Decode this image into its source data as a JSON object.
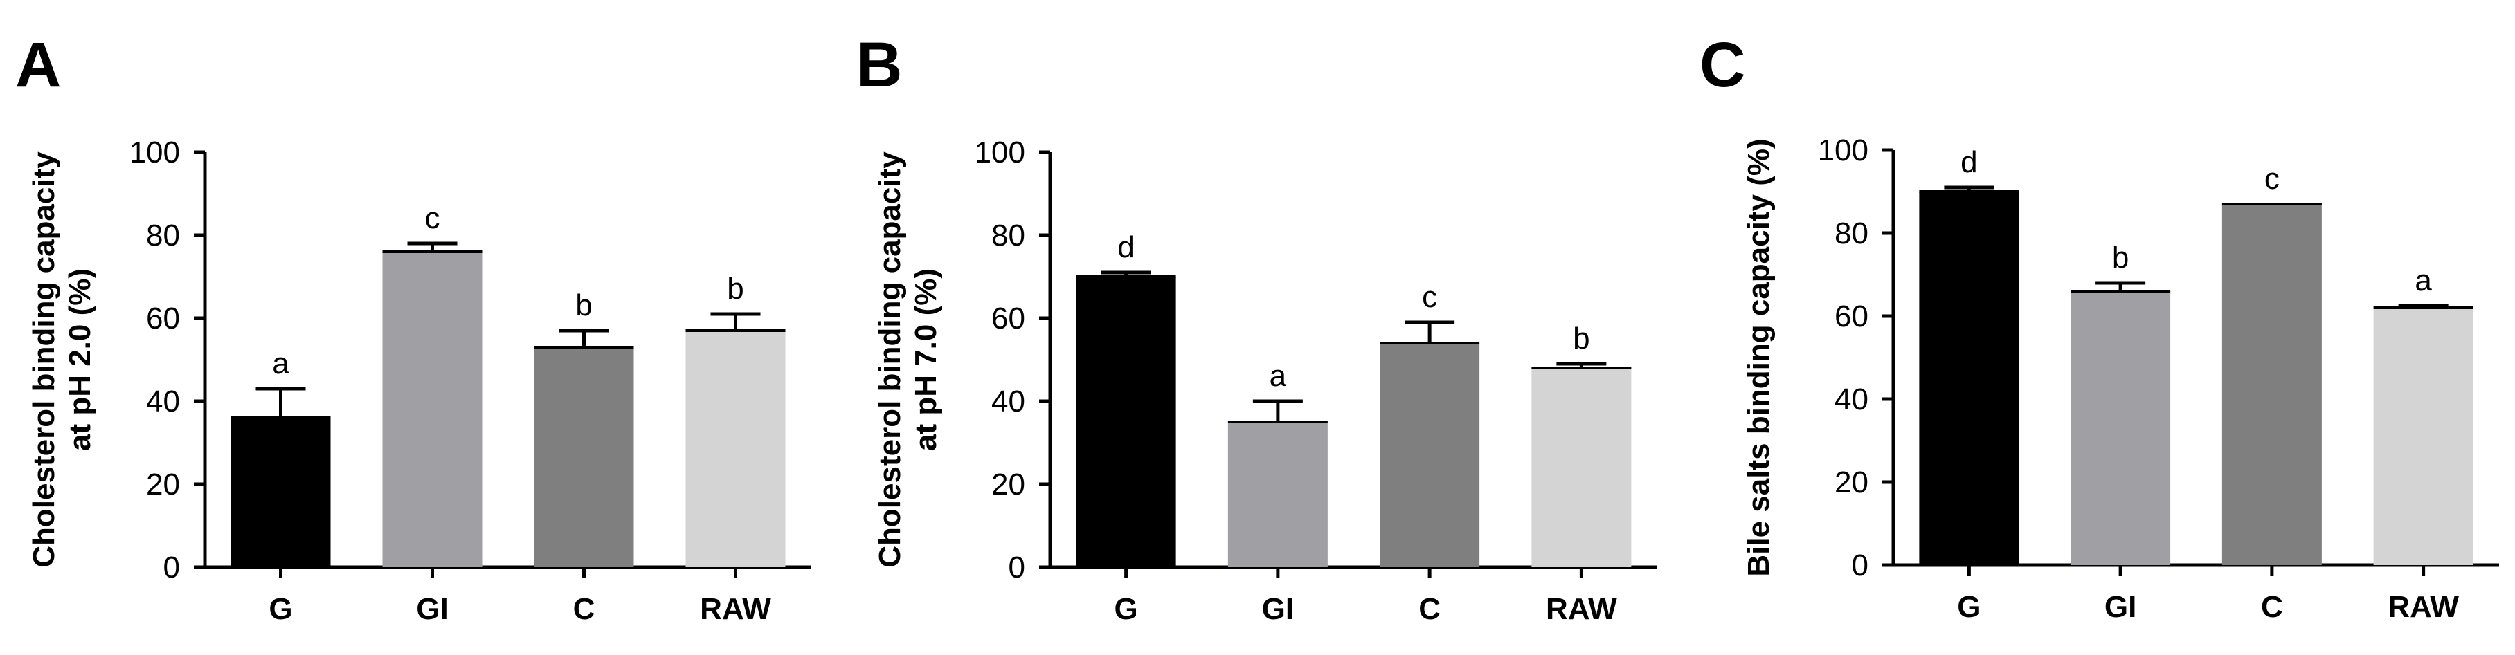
{
  "chart_data": [
    {
      "panel": "A",
      "type": "bar",
      "ylabel": [
        "Cholesterol binding capacity",
        "at pH 2.0 (%)"
      ],
      "ylim": [
        0,
        100
      ],
      "yticks": [
        0,
        20,
        40,
        60,
        80,
        100
      ],
      "categories": [
        "G",
        "GI",
        "C",
        "RAW"
      ],
      "values": [
        36,
        76,
        53,
        57
      ],
      "errors": [
        7,
        2,
        4,
        4
      ],
      "letters": [
        "a",
        "c",
        "b",
        "b"
      ],
      "colors": [
        "#000000",
        "#a0a0a4",
        "#7f7f7f",
        "#d4d4d4"
      ]
    },
    {
      "panel": "B",
      "type": "bar",
      "ylabel": [
        "Cholesterol binding capacity",
        "at pH 7.0 (%)"
      ],
      "ylim": [
        0,
        100
      ],
      "yticks": [
        0,
        20,
        40,
        60,
        80,
        100
      ],
      "categories": [
        "G",
        "GI",
        "C",
        "RAW"
      ],
      "values": [
        70,
        35,
        54,
        48
      ],
      "errors": [
        1,
        5,
        5,
        1
      ],
      "letters": [
        "d",
        "a",
        "c",
        "b"
      ],
      "colors": [
        "#000000",
        "#a0a0a4",
        "#7f7f7f",
        "#d4d4d4"
      ]
    },
    {
      "panel": "C",
      "type": "bar",
      "ylabel": [
        "Bile salts binding capacity (%)"
      ],
      "ylim": [
        0,
        100
      ],
      "yticks": [
        0,
        20,
        40,
        60,
        80,
        100
      ],
      "categories": [
        "G",
        "GI",
        "C",
        "RAW"
      ],
      "values": [
        90,
        66,
        87,
        62
      ],
      "errors": [
        1,
        2,
        0,
        0.5
      ],
      "letters": [
        "d",
        "b",
        "c",
        "a"
      ],
      "colors": [
        "#000000",
        "#a0a0a4",
        "#7f7f7f",
        "#d4d4d4"
      ]
    }
  ]
}
